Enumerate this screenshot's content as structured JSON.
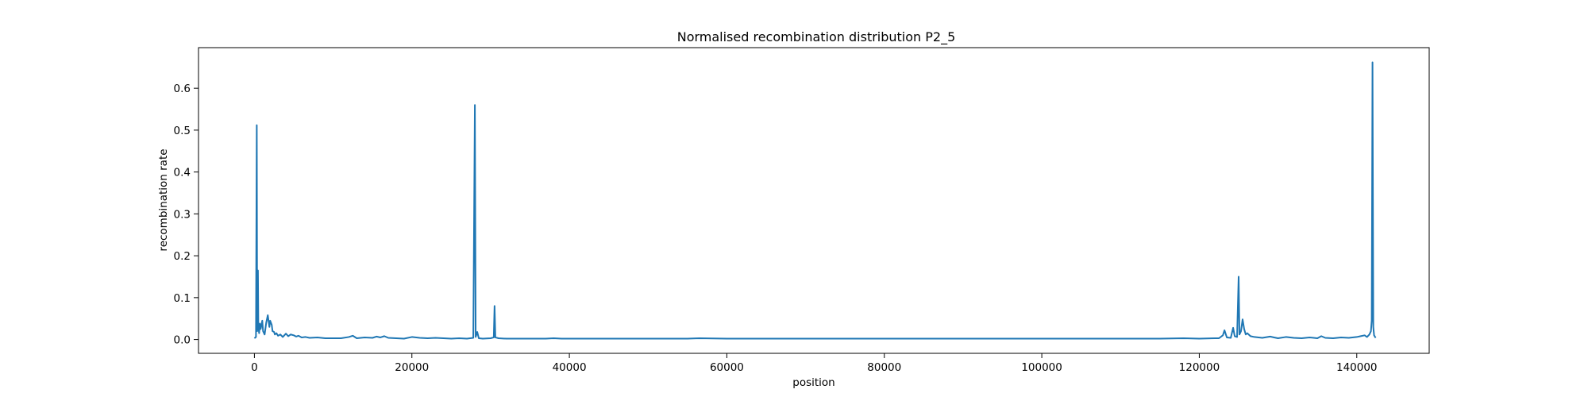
{
  "chart_data": {
    "type": "line",
    "title": "Normalised recombination distribution P2_5",
    "xlabel": "position",
    "ylabel": "recombination rate",
    "xlim": [
      -7100,
      149200
    ],
    "ylim": [
      -0.033,
      0.697
    ],
    "xticks": [
      0,
      20000,
      40000,
      60000,
      80000,
      100000,
      120000,
      140000
    ],
    "yticks": [
      0.0,
      0.1,
      0.2,
      0.3,
      0.4,
      0.5,
      0.6
    ],
    "ytick_labels": [
      "0.0",
      "0.1",
      "0.2",
      "0.3",
      "0.4",
      "0.5",
      "0.6"
    ],
    "grid": false,
    "color": "#1f77b4",
    "series": [
      {
        "x": [
          0,
          200,
          300,
          350,
          450,
          500,
          600,
          700,
          800,
          1000,
          1100,
          1300,
          1500,
          1700,
          1900,
          2000,
          2200,
          2300,
          2500,
          2600,
          2800,
          3000,
          3300,
          3600,
          4000,
          4300,
          4600,
          5000,
          5300,
          5600,
          6000,
          6500,
          7000,
          8000,
          9000,
          10000,
          11000,
          12000,
          12500,
          13000,
          14000,
          15000,
          15500,
          16000,
          16500,
          17000,
          18000,
          19000,
          20000,
          21000,
          22000,
          23000,
          24000,
          25000,
          26000,
          27000,
          27800,
          28000,
          28100,
          28300,
          28500,
          29000,
          30000,
          30400,
          30500,
          30600,
          31000,
          32000,
          34000,
          36000,
          37000,
          38000,
          39000,
          40000,
          45000,
          50000,
          55000,
          56500,
          60000,
          65000,
          70000,
          75000,
          80000,
          85000,
          90000,
          95000,
          100000,
          105000,
          110000,
          115000,
          118000,
          120000,
          122000,
          122500,
          123000,
          123200,
          123500,
          124000,
          124300,
          124500,
          124800,
          125000,
          125100,
          125300,
          125500,
          125700,
          125900,
          126100,
          126500,
          127000,
          128000,
          129000,
          129500,
          130000,
          131000,
          132000,
          133000,
          134000,
          135000,
          135500,
          136000,
          137000,
          138000,
          139000,
          140000,
          140500,
          141000,
          141300,
          141600,
          141800,
          141900,
          142000,
          142100,
          142200,
          142400
        ],
        "y": [
          0.003,
          0.006,
          0.512,
          0.02,
          0.165,
          0.03,
          0.015,
          0.038,
          0.025,
          0.045,
          0.02,
          0.012,
          0.04,
          0.058,
          0.03,
          0.045,
          0.035,
          0.02,
          0.018,
          0.012,
          0.015,
          0.009,
          0.012,
          0.006,
          0.014,
          0.008,
          0.012,
          0.01,
          0.007,
          0.009,
          0.005,
          0.006,
          0.004,
          0.005,
          0.003,
          0.003,
          0.003,
          0.006,
          0.009,
          0.003,
          0.005,
          0.004,
          0.007,
          0.005,
          0.008,
          0.004,
          0.003,
          0.002,
          0.006,
          0.004,
          0.003,
          0.004,
          0.003,
          0.002,
          0.003,
          0.002,
          0.004,
          0.56,
          0.006,
          0.018,
          0.003,
          0.002,
          0.003,
          0.005,
          0.08,
          0.005,
          0.003,
          0.002,
          0.002,
          0.002,
          0.002,
          0.003,
          0.002,
          0.002,
          0.002,
          0.002,
          0.002,
          0.003,
          0.002,
          0.002,
          0.002,
          0.002,
          0.002,
          0.002,
          0.002,
          0.002,
          0.002,
          0.002,
          0.002,
          0.002,
          0.003,
          0.002,
          0.003,
          0.003,
          0.01,
          0.022,
          0.005,
          0.004,
          0.028,
          0.008,
          0.006,
          0.15,
          0.012,
          0.02,
          0.048,
          0.025,
          0.012,
          0.015,
          0.008,
          0.006,
          0.004,
          0.007,
          0.005,
          0.003,
          0.006,
          0.004,
          0.003,
          0.005,
          0.003,
          0.008,
          0.004,
          0.003,
          0.005,
          0.004,
          0.006,
          0.008,
          0.01,
          0.006,
          0.012,
          0.02,
          0.045,
          0.662,
          0.03,
          0.01,
          0.004
        ]
      }
    ]
  }
}
